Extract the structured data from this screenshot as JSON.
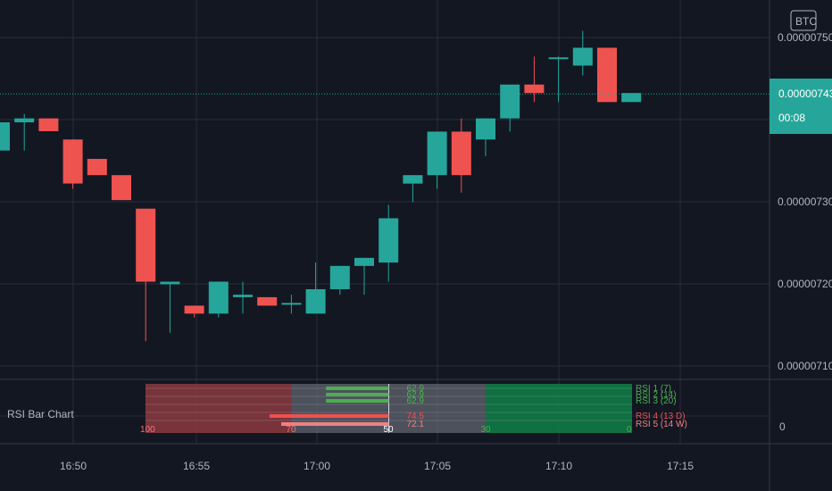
{
  "chart_data": [
    {
      "type": "candlestick",
      "x_ticks": [
        "16:50",
        "16:55",
        "17:00",
        "17:05",
        "17:10",
        "17:15"
      ],
      "y_ticks": [
        "0.00000750",
        "0.00000743",
        "0.00000730",
        "0.00000720",
        "0.00000710"
      ],
      "ylim": [
        7.08e-07,
        7.54e-07
      ],
      "last_price": "0.00000743",
      "countdown": "00:08",
      "currency": "BTC",
      "grid": true,
      "candles": [
        {
          "o": 7.3624e-07,
          "h": 7.3967e-07,
          "l": 7.3624e-07,
          "c": 7.3967e-07
        },
        {
          "o": 7.3967e-07,
          "h": 7.407e-07,
          "l": 7.3624e-07,
          "c": 7.4015e-07
        },
        {
          "o": 7.4015e-07,
          "h": 7.4015e-07,
          "l": 7.3859e-07,
          "c": 7.3859e-07
        },
        {
          "o": 7.3758e-07,
          "h": 7.3758e-07,
          "l": 7.3158e-07,
          "c": 7.3222e-07
        },
        {
          "o": 7.3522e-07,
          "h": 7.3522e-07,
          "l": 7.3324e-07,
          "c": 7.3324e-07
        },
        {
          "o": 7.3324e-07,
          "h": 7.3324e-07,
          "l": 7.302e-07,
          "c": 7.302e-07
        },
        {
          "o": 7.2916e-07,
          "h": 7.2916e-07,
          "l": 7.1303e-07,
          "c": 7.2027e-07
        },
        {
          "o": 7.1995e-07,
          "h": 7.1995e-07,
          "l": 7.1403e-07,
          "c": 7.2027e-07
        },
        {
          "o": 7.1735e-07,
          "h": 7.1735e-07,
          "l": 7.1592e-07,
          "c": 7.1638e-07
        },
        {
          "o": 7.1638e-07,
          "h": 7.2027e-07,
          "l": 7.1592e-07,
          "c": 7.2027e-07
        },
        {
          "o": 7.1838e-07,
          "h": 7.2027e-07,
          "l": 7.1638e-07,
          "c": 7.1868e-07
        },
        {
          "o": 7.1838e-07,
          "h": 7.1838e-07,
          "l": 7.1735e-07,
          "c": 7.1735e-07
        },
        {
          "o": 7.1748e-07,
          "h": 7.1868e-07,
          "l": 7.1638e-07,
          "c": 7.1768e-07
        },
        {
          "o": 7.1638e-07,
          "h": 7.226e-07,
          "l": 7.1638e-07,
          "c": 7.1935e-07
        },
        {
          "o": 7.1935e-07,
          "h": 7.2219e-07,
          "l": 7.1868e-07,
          "c": 7.2219e-07
        },
        {
          "o": 7.2219e-07,
          "h": 7.2317e-07,
          "l": 7.1868e-07,
          "c": 7.2317e-07
        },
        {
          "o": 7.226e-07,
          "h": 7.2963e-07,
          "l": 7.2027e-07,
          "c": 7.2799e-07
        },
        {
          "o": 7.3221e-07,
          "h": 7.3324e-07,
          "l": 7.2995e-07,
          "c": 7.3324e-07
        },
        {
          "o": 7.3324e-07,
          "h": 7.3854e-07,
          "l": 7.3158e-07,
          "c": 7.3854e-07
        },
        {
          "o": 7.3854e-07,
          "h": 7.4015e-07,
          "l": 7.3111e-07,
          "c": 7.3324e-07
        },
        {
          "o": 7.3758e-07,
          "h": 7.4015e-07,
          "l": 7.3554e-07,
          "c": 7.4015e-07
        },
        {
          "o": 7.4015e-07,
          "h": 7.4427e-07,
          "l": 7.3854e-07,
          "c": 7.4427e-07
        },
        {
          "o": 7.4427e-07,
          "h": 7.4768e-07,
          "l": 7.4214e-07,
          "c": 7.4324e-07
        },
        {
          "o": 7.4758e-07,
          "h": 7.4768e-07,
          "l": 7.4214e-07,
          "c": 7.4758e-07
        },
        {
          "o": 7.4658e-07,
          "h": 7.5081e-07,
          "l": 7.4539e-07,
          "c": 7.4875e-07
        },
        {
          "o": 7.4875e-07,
          "h": 7.4875e-07,
          "l": 7.4214e-07,
          "c": 7.4214e-07
        },
        {
          "o": 7.4214e-07,
          "h": 7.4324e-07,
          "l": 7.4214e-07,
          "c": 7.4324e-07
        }
      ]
    },
    {
      "type": "bar",
      "title": "RSI Bar Chart",
      "y_tick": "0",
      "zones": {
        "overbought": 70,
        "oversold": 30,
        "mid": 50
      },
      "scale_labels": [
        "100",
        "70",
        "50",
        "30",
        "0"
      ],
      "series": [
        {
          "name": "RSI 1",
          "label": "(7)",
          "value": 62.9,
          "color": "#4caf50"
        },
        {
          "name": "RSI 2",
          "label": "(14)",
          "value": 62.9,
          "color": "#4caf50"
        },
        {
          "name": "RSI 3",
          "label": "(20)",
          "value": 62.9,
          "color": "#4caf50"
        },
        {
          "name": "RSI 4",
          "label": "(13 D)",
          "value": 74.5,
          "color": "#f05050"
        },
        {
          "name": "RSI 5",
          "label": "(14 W)",
          "value": 72.1,
          "color": "#f08080"
        }
      ]
    }
  ]
}
